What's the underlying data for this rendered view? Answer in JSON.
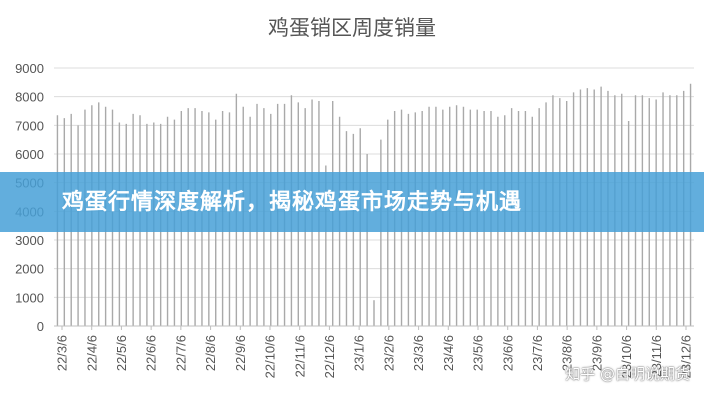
{
  "chart_data": {
    "type": "bar",
    "title": "鸡蛋销区周度销量",
    "xlabel": "",
    "ylabel": "",
    "ylim": [
      0,
      9000
    ],
    "yticks": [
      0,
      1000,
      2000,
      3000,
      4000,
      5000,
      6000,
      7000,
      8000,
      9000
    ],
    "grid": true,
    "legend": "none",
    "bar_color": "#A9A9A9",
    "x_tick_labels": [
      "22/3/6",
      "22/4/6",
      "22/5/6",
      "22/6/6",
      "22/7/6",
      "22/8/6",
      "22/9/6",
      "22/10/6",
      "22/11/6",
      "22/12/6",
      "23/1/6",
      "23/2/6",
      "23/3/6",
      "23/4/6",
      "23/5/6",
      "23/6/6",
      "23/7/6",
      "23/8/6",
      "23/9/6",
      "23/10/6",
      "23/11/6",
      "23/12/6"
    ],
    "values": [
      7350,
      7250,
      7400,
      7000,
      7550,
      7700,
      7800,
      7650,
      7550,
      7100,
      7050,
      7400,
      7350,
      7050,
      7100,
      7050,
      7300,
      7200,
      7500,
      7600,
      7600,
      7500,
      7450,
      7200,
      7500,
      7450,
      8100,
      7650,
      7300,
      7750,
      7600,
      7400,
      7750,
      7750,
      8050,
      7800,
      7600,
      7900,
      7850,
      5600,
      7850,
      7300,
      6800,
      6700,
      6900,
      6000,
      900,
      6500,
      7200,
      7500,
      7550,
      7400,
      7450,
      7500,
      7650,
      7650,
      7550,
      7650,
      7700,
      7650,
      7550,
      7550,
      7500,
      7500,
      7300,
      7350,
      7600,
      7500,
      7500,
      7300,
      7600,
      7800,
      8050,
      7950,
      7850,
      8150,
      8250,
      8300,
      8250,
      8350,
      8200,
      8050,
      8100,
      7150,
      8050,
      8050,
      7950,
      7900,
      8150,
      8050,
      8050,
      8200,
      8450
    ]
  },
  "overlay": {
    "banner_text": "鸡蛋行情深度解析，揭秘鸡蛋市场走势与机遇",
    "banner_color": "#46A0D7",
    "watermark": "知乎 @白明说期货"
  }
}
